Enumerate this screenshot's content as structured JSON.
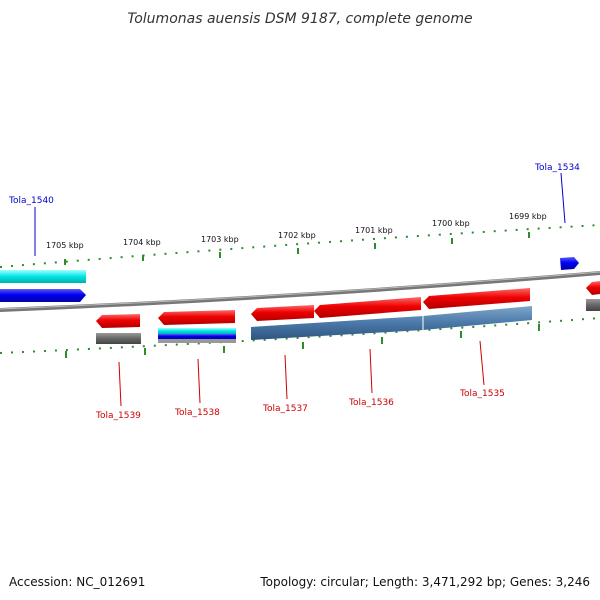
{
  "title": "Tolumonas auensis DSM 9187, complete genome",
  "footer": {
    "accession": "Accession: NC_012691",
    "summary": "Topology: circular; Length: 3,471,292 bp; Genes: 3,246"
  },
  "ticks": [
    "1705 kbp",
    "1704 kbp",
    "1703 kbp",
    "1702 kbp",
    "1701 kbp",
    "1700 kbp",
    "1699 kbp"
  ],
  "genes": {
    "top": [
      "Tola_1540",
      "Tola_1534"
    ],
    "bottom": [
      "Tola_1539",
      "Tola_1538",
      "Tola_1537",
      "Tola_1536",
      "Tola_1535"
    ]
  },
  "colors": {
    "forward_gene": "#0000ee",
    "reverse_gene": "#ee0000",
    "cds_cyan": "#00e5e5",
    "cds_steel": "#4a78a8",
    "pseudo_gray": "#666666",
    "backbone": "#888888",
    "tick_green": "#2e8b2e",
    "label_blue": "#0000cc",
    "label_red": "#cc0000"
  }
}
